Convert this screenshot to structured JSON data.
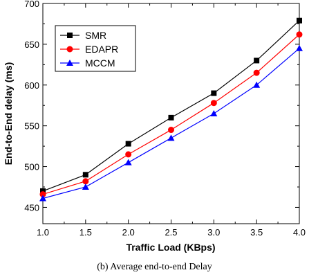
{
  "chart_data": {
    "type": "line",
    "xlabel": "Traffic Load (KBps)",
    "ylabel": "End-to-End delay (ms)",
    "x": [
      1.0,
      1.5,
      2.0,
      2.5,
      3.0,
      3.5,
      4.0
    ],
    "xlim": [
      1.0,
      4.0
    ],
    "ylim": [
      430,
      700
    ],
    "x_ticks": [
      "1.0",
      "1.5",
      "2.0",
      "2.5",
      "3.0",
      "3.5",
      "4.0"
    ],
    "y_ticks": [
      450,
      500,
      550,
      600,
      650,
      700
    ],
    "grid": false,
    "legend_position": "top-left",
    "series": [
      {
        "name": "SMR",
        "color": "#000000",
        "marker": "square",
        "values": [
          470,
          490,
          528,
          560,
          590,
          630,
          679
        ]
      },
      {
        "name": "EDAPR",
        "color": "#ff0000",
        "marker": "circle",
        "values": [
          466,
          482,
          515,
          545,
          578,
          615,
          662
        ]
      },
      {
        "name": "MCCM",
        "color": "#0000ff",
        "marker": "triangle",
        "values": [
          461,
          475,
          505,
          535,
          565,
          600,
          645
        ]
      }
    ]
  },
  "caption": "(b) Average end-to-end Delay"
}
